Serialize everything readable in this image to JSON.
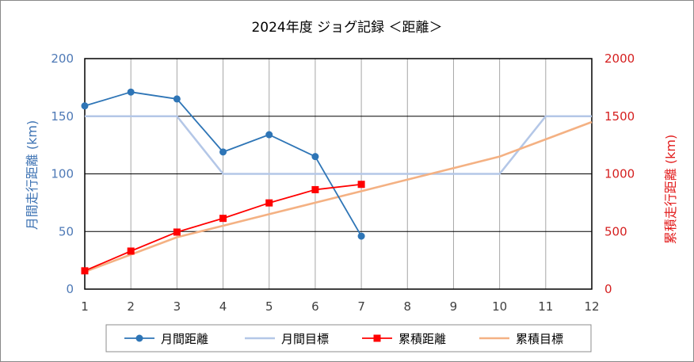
{
  "chart_data": {
    "type": "line",
    "title": "2024年度 ジョグ記録 ＜距離＞",
    "ylabel_left": "月間走行距離 (km)",
    "ylabel_right": "累積走行距離 (km)",
    "xlabel": "",
    "x": [
      1,
      2,
      3,
      4,
      5,
      6,
      7,
      8,
      9,
      10,
      11,
      12
    ],
    "x_tick_labels": [
      "1",
      "2",
      "3",
      "4",
      "5",
      "6",
      "7",
      "8",
      "9",
      "10",
      "11",
      "12"
    ],
    "xlim": [
      1,
      12
    ],
    "ylim_left": [
      0,
      200
    ],
    "ylim_right": [
      0,
      2000
    ],
    "y_ticks_left": [
      "0",
      "50",
      "100",
      "150",
      "200"
    ],
    "y_ticks_right": [
      "0",
      "500",
      "1000",
      "1500",
      "2000"
    ],
    "grid": true,
    "legend_position": "bottom",
    "series": [
      {
        "name": "月間距離",
        "axis": "left",
        "marker": "circle",
        "color": "#2e75b6",
        "x": [
          1,
          2,
          3,
          4,
          5,
          6,
          7
        ],
        "values": [
          159,
          171,
          165,
          119,
          134,
          115,
          46
        ]
      },
      {
        "name": "月間目標",
        "axis": "left",
        "marker": "none",
        "color": "#b4c7e7",
        "x": [
          1,
          2,
          3,
          4,
          5,
          6,
          7,
          8,
          9,
          10,
          11,
          12
        ],
        "values": [
          150,
          150,
          150,
          100,
          100,
          100,
          100,
          100,
          100,
          100,
          150,
          150
        ]
      },
      {
        "name": "累積距離",
        "axis": "right",
        "marker": "square",
        "color": "#ff0000",
        "x": [
          1,
          2,
          3,
          4,
          5,
          6,
          7
        ],
        "values": [
          159,
          330,
          495,
          614,
          748,
          863,
          909
        ]
      },
      {
        "name": "累積目標",
        "axis": "right",
        "marker": "none",
        "color": "#f4b183",
        "x": [
          1,
          2,
          3,
          4,
          5,
          6,
          7,
          8,
          9,
          10,
          11,
          12
        ],
        "values": [
          150,
          300,
          450,
          550,
          650,
          750,
          850,
          950,
          1050,
          1150,
          1300,
          1450
        ]
      }
    ]
  }
}
